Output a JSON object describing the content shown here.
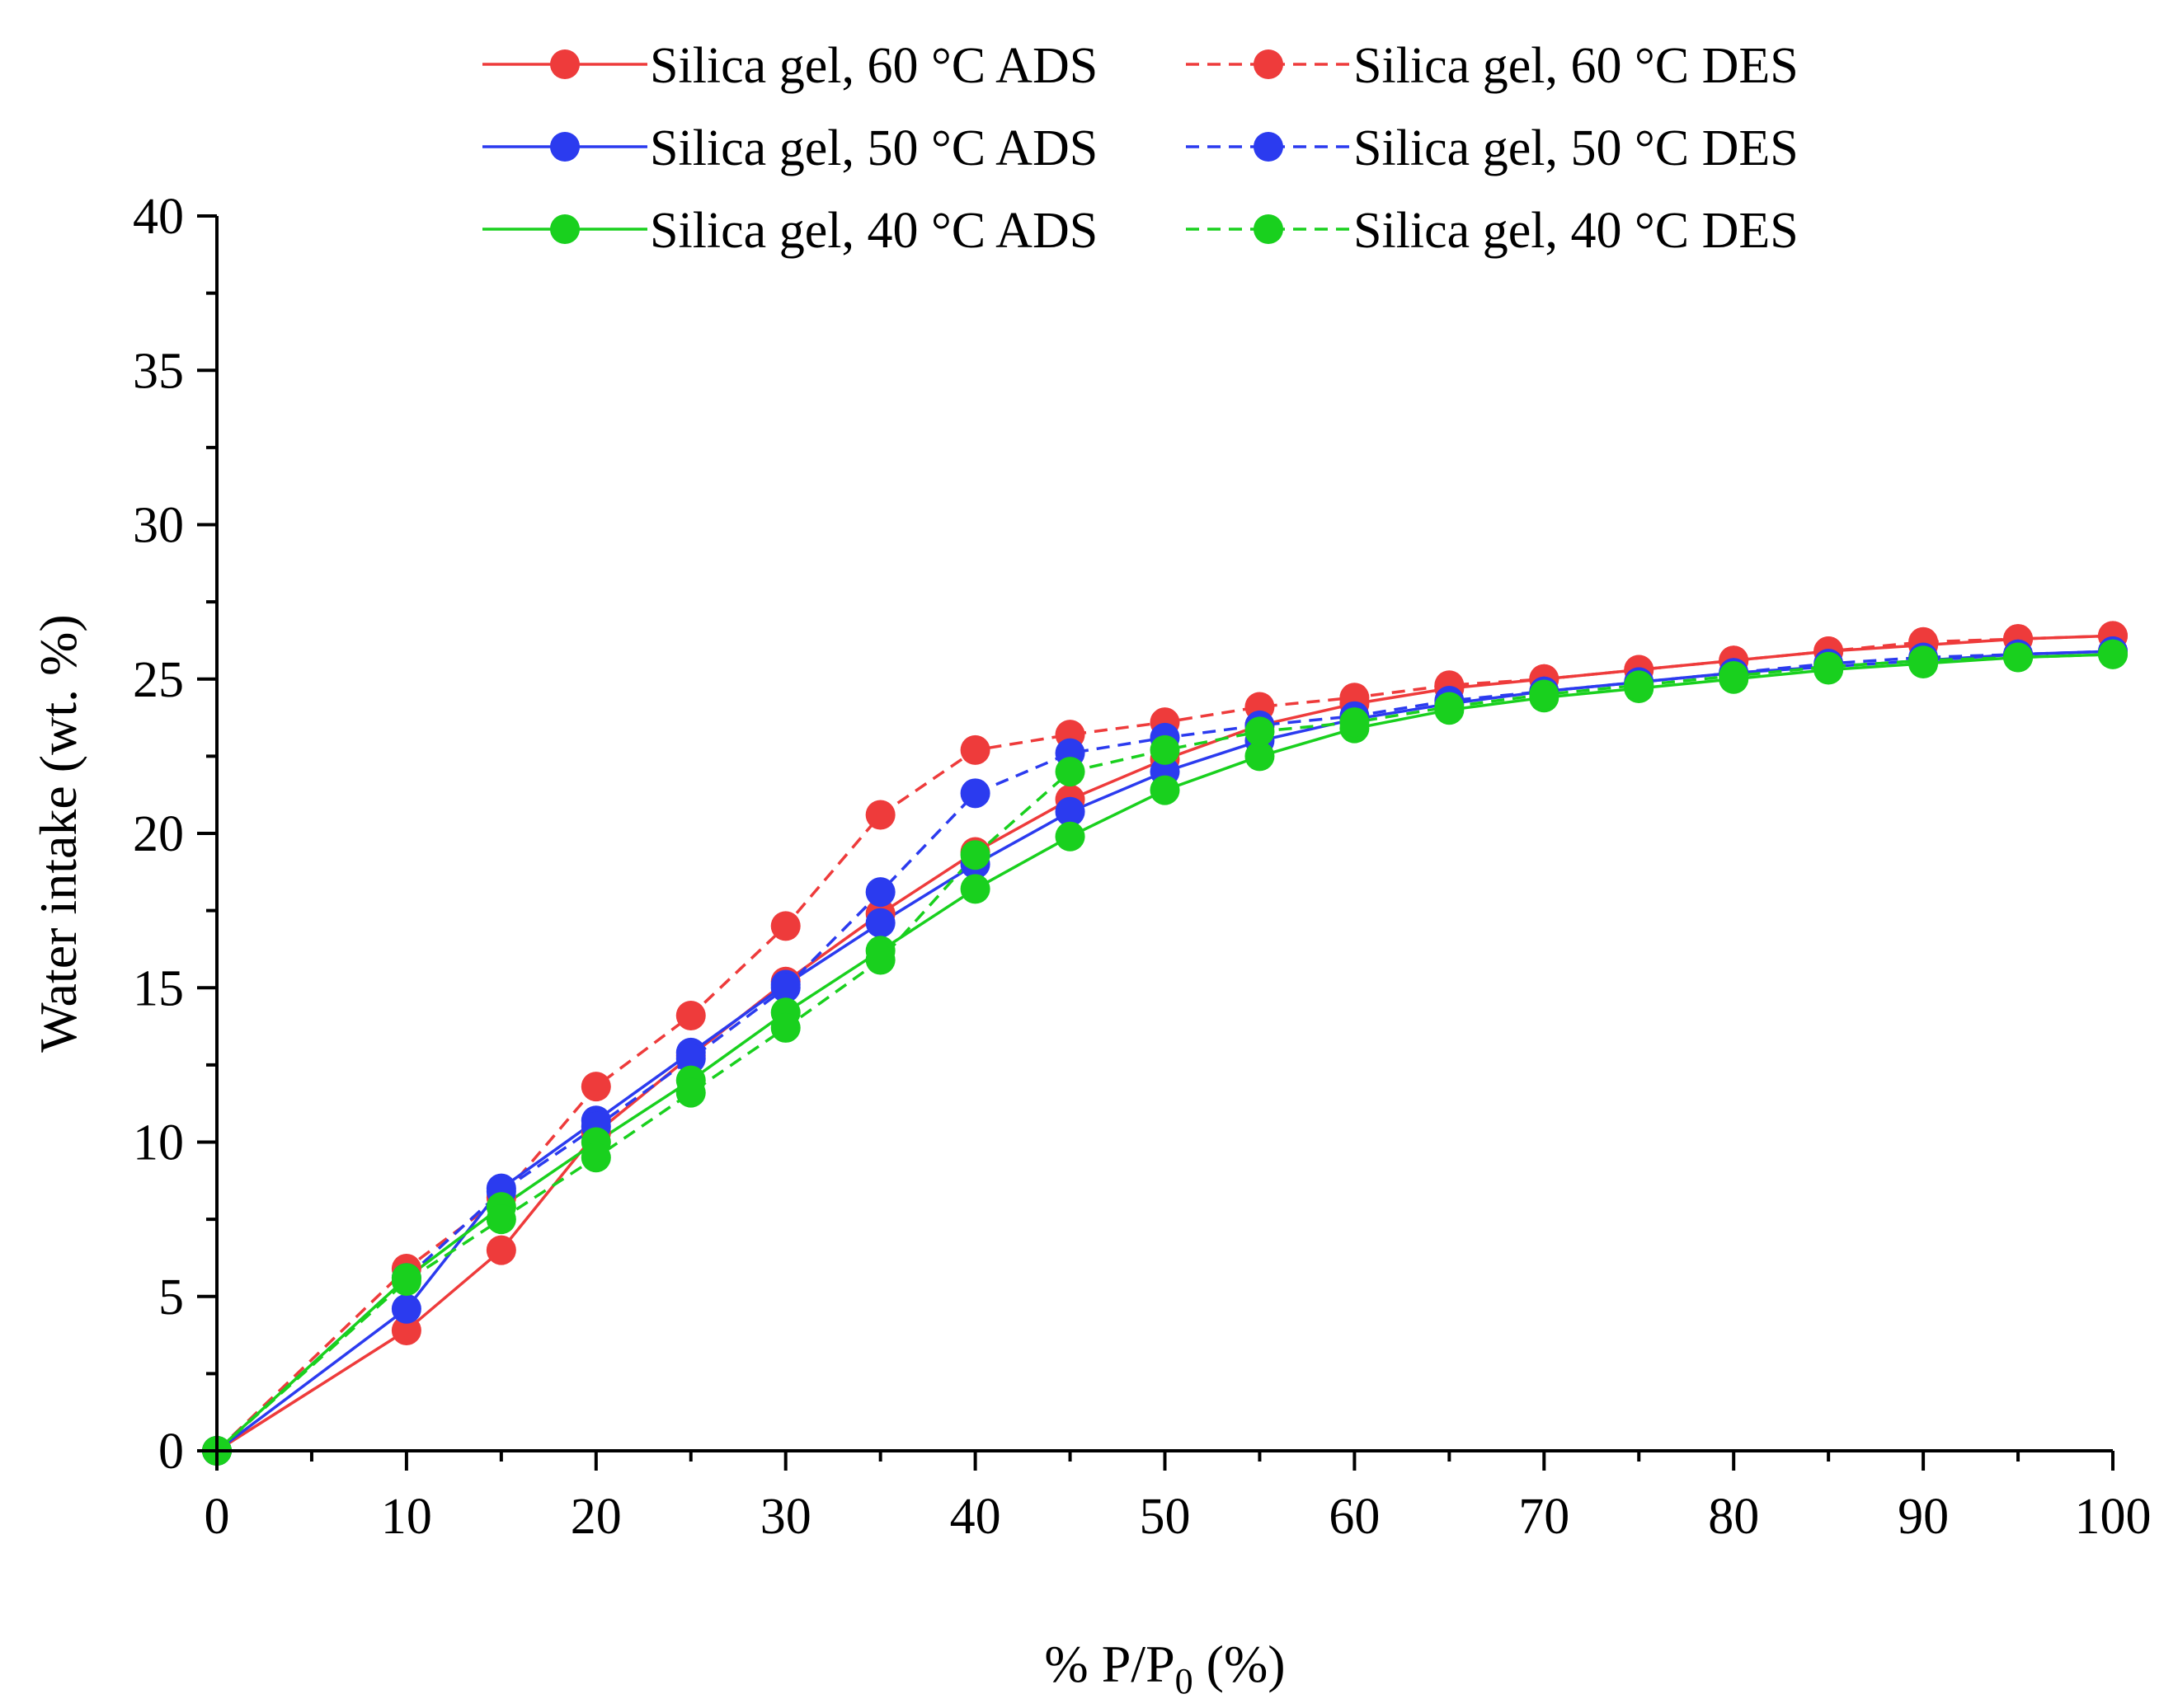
{
  "chart_data": {
    "type": "line",
    "title": "",
    "xlabel": "% P/P",
    "xlabel_subscript": "0",
    "xlabel_suffix": " (%)",
    "ylabel": "Water intake (wt. %)",
    "xlim": [
      0,
      100
    ],
    "ylim": [
      0,
      40
    ],
    "x_ticks": [
      0,
      10,
      20,
      30,
      40,
      50,
      60,
      70,
      80,
      90,
      100
    ],
    "x_tick_labels": [
      "0",
      "10",
      "20",
      "30",
      "40",
      "50",
      "60",
      "70",
      "80",
      "90",
      "100"
    ],
    "y_ticks": [
      0,
      5,
      10,
      15,
      20,
      25,
      30,
      35,
      40
    ],
    "y_tick_labels": [
      "0",
      "5",
      "10",
      "15",
      "20",
      "25",
      "30",
      "35",
      "40"
    ],
    "grid": false,
    "legend_position": "top",
    "x": [
      0,
      10,
      15,
      20,
      25,
      30,
      35,
      40,
      45,
      50,
      55,
      60,
      65,
      70,
      75,
      80,
      85,
      90,
      95,
      100
    ],
    "series": [
      {
        "name": "Silica gel, 60 °C ADS",
        "color": "#ee3b3b",
        "dash": "solid",
        "values": [
          0,
          3.9,
          6.5,
          10.3,
          12.8,
          15.2,
          17.4,
          19.4,
          21.1,
          22.4,
          23.5,
          24.2,
          24.7,
          25.0,
          25.3,
          25.6,
          25.9,
          26.1,
          26.3,
          26.4
        ]
      },
      {
        "name": "Silica gel, 60 °C DES",
        "color": "#ee3b3b",
        "dash": "dashed",
        "values": [
          0,
          5.9,
          8.2,
          11.8,
          14.1,
          17.0,
          20.6,
          22.7,
          23.2,
          23.6,
          24.1,
          24.4,
          24.8,
          25.0,
          25.3,
          25.6,
          25.9,
          26.2,
          26.3,
          26.4
        ]
      },
      {
        "name": "Silica gel, 50 °C ADS",
        "color": "#2b3bef",
        "dash": "solid",
        "values": [
          0,
          4.6,
          8.5,
          10.7,
          12.9,
          15.1,
          17.1,
          19.0,
          20.7,
          22.0,
          23.0,
          23.7,
          24.2,
          24.6,
          24.9,
          25.2,
          25.4,
          25.6,
          25.8,
          25.9
        ]
      },
      {
        "name": "Silica gel, 50 °C DES",
        "color": "#2b3bef",
        "dash": "dashed",
        "values": [
          0,
          5.6,
          8.4,
          10.5,
          12.7,
          15.0,
          18.1,
          21.3,
          22.6,
          23.1,
          23.5,
          23.8,
          24.3,
          24.6,
          24.9,
          25.2,
          25.5,
          25.7,
          25.8,
          25.9
        ]
      },
      {
        "name": "Silica gel, 40 °C ADS",
        "color": "#19d01e",
        "dash": "solid",
        "values": [
          0,
          5.6,
          7.9,
          10.0,
          12.0,
          14.2,
          16.2,
          18.2,
          19.9,
          21.4,
          22.5,
          23.4,
          24.0,
          24.4,
          24.7,
          25.0,
          25.3,
          25.5,
          25.7,
          25.8
        ]
      },
      {
        "name": "Silica gel, 40 °C DES",
        "color": "#19d01e",
        "dash": "dashed",
        "values": [
          0,
          5.5,
          7.5,
          9.5,
          11.6,
          13.7,
          15.9,
          19.3,
          22.0,
          22.7,
          23.3,
          23.6,
          24.1,
          24.5,
          24.8,
          25.1,
          25.4,
          25.6,
          25.7,
          25.8
        ]
      }
    ]
  }
}
